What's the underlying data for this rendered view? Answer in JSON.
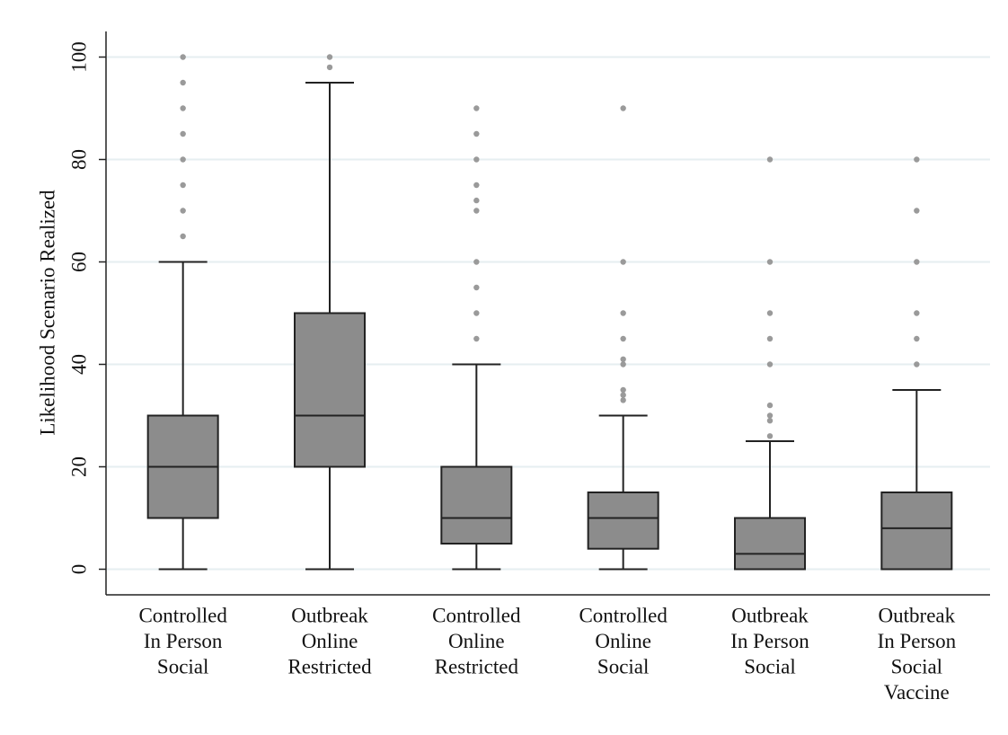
{
  "chart_data": {
    "type": "box",
    "y_label": "Likelihood Scenario Realized",
    "ylim": [
      -5,
      105
    ],
    "yticks": [
      0,
      20,
      40,
      60,
      80,
      100
    ],
    "grid": true,
    "box_color": "#8c8c8c",
    "outlier_color": "#9a9a9a",
    "grid_color": "#e6eef0",
    "boxes": [
      {
        "label": [
          "Controlled",
          "In Person",
          "Social"
        ],
        "whisker_low": 0,
        "q1": 10,
        "median": 20,
        "q3": 30,
        "whisker_high": 60,
        "outliers": [
          65,
          70,
          75,
          80,
          85,
          90,
          95,
          100
        ]
      },
      {
        "label": [
          "Outbreak",
          "Online",
          "Restricted"
        ],
        "whisker_low": 0,
        "q1": 20,
        "median": 30,
        "q3": 50,
        "whisker_high": 95,
        "outliers": [
          98,
          100
        ]
      },
      {
        "label": [
          "Controlled",
          "Online",
          "Restricted"
        ],
        "whisker_low": 0,
        "q1": 5,
        "median": 10,
        "q3": 20,
        "whisker_high": 40,
        "outliers": [
          45,
          50,
          55,
          60,
          70,
          72,
          75,
          80,
          85,
          90
        ]
      },
      {
        "label": [
          "Controlled",
          "Online",
          "Social"
        ],
        "whisker_low": 0,
        "q1": 4,
        "median": 10,
        "q3": 15,
        "whisker_high": 30,
        "outliers": [
          33,
          34,
          35,
          40,
          41,
          45,
          50,
          60,
          90
        ]
      },
      {
        "label": [
          "Outbreak",
          "In Person",
          "Social"
        ],
        "whisker_low": 0,
        "q1": 0,
        "median": 3,
        "q3": 10,
        "whisker_high": 25,
        "outliers": [
          26,
          29,
          30,
          32,
          40,
          45,
          50,
          60,
          80
        ]
      },
      {
        "label": [
          "Outbreak",
          "In Person",
          "Social",
          "Vaccine"
        ],
        "whisker_low": 0,
        "q1": 0,
        "median": 8,
        "q3": 15,
        "whisker_high": 35,
        "outliers": [
          40,
          45,
          50,
          60,
          70,
          80
        ]
      }
    ]
  }
}
